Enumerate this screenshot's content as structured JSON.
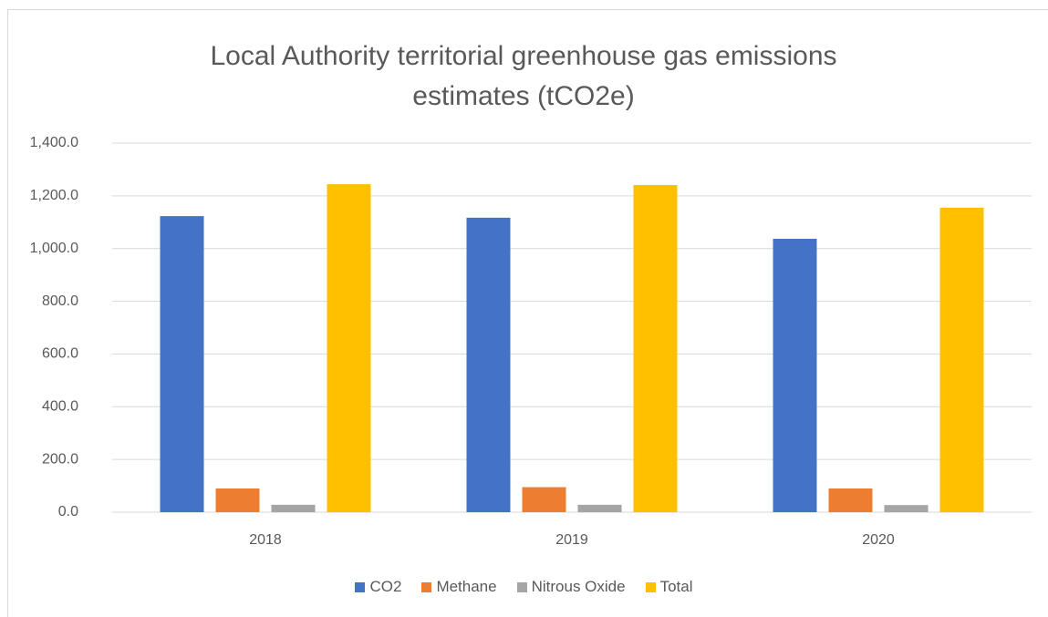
{
  "chart_data": {
    "type": "bar",
    "title": "Local Authority territorial greenhouse gas emissions estimates (tCO2e)",
    "categories": [
      "2018",
      "2019",
      "2020"
    ],
    "series": [
      {
        "name": "CO2",
        "color": "#4472c4",
        "values": [
          1123,
          1117,
          1037
        ]
      },
      {
        "name": "Methane",
        "color": "#ed7d31",
        "values": [
          90,
          95,
          90
        ]
      },
      {
        "name": "Nitrous Oxide",
        "color": "#a5a5a5",
        "values": [
          28,
          28,
          27
        ]
      },
      {
        "name": "Total",
        "color": "#ffc000",
        "values": [
          1244,
          1241,
          1155
        ]
      }
    ],
    "ylim": [
      0,
      1400
    ],
    "yticks": [
      {
        "value": 0,
        "label": "0.0"
      },
      {
        "value": 200,
        "label": "200.0"
      },
      {
        "value": 400,
        "label": "400.0"
      },
      {
        "value": 600,
        "label": "600.0"
      },
      {
        "value": 800,
        "label": "800.0"
      },
      {
        "value": 1000,
        "label": "1,000.0"
      },
      {
        "value": 1200,
        "label": "1,200.0"
      },
      {
        "value": 1400,
        "label": "1,400.0"
      }
    ],
    "grid": true,
    "legend": "bottom"
  }
}
